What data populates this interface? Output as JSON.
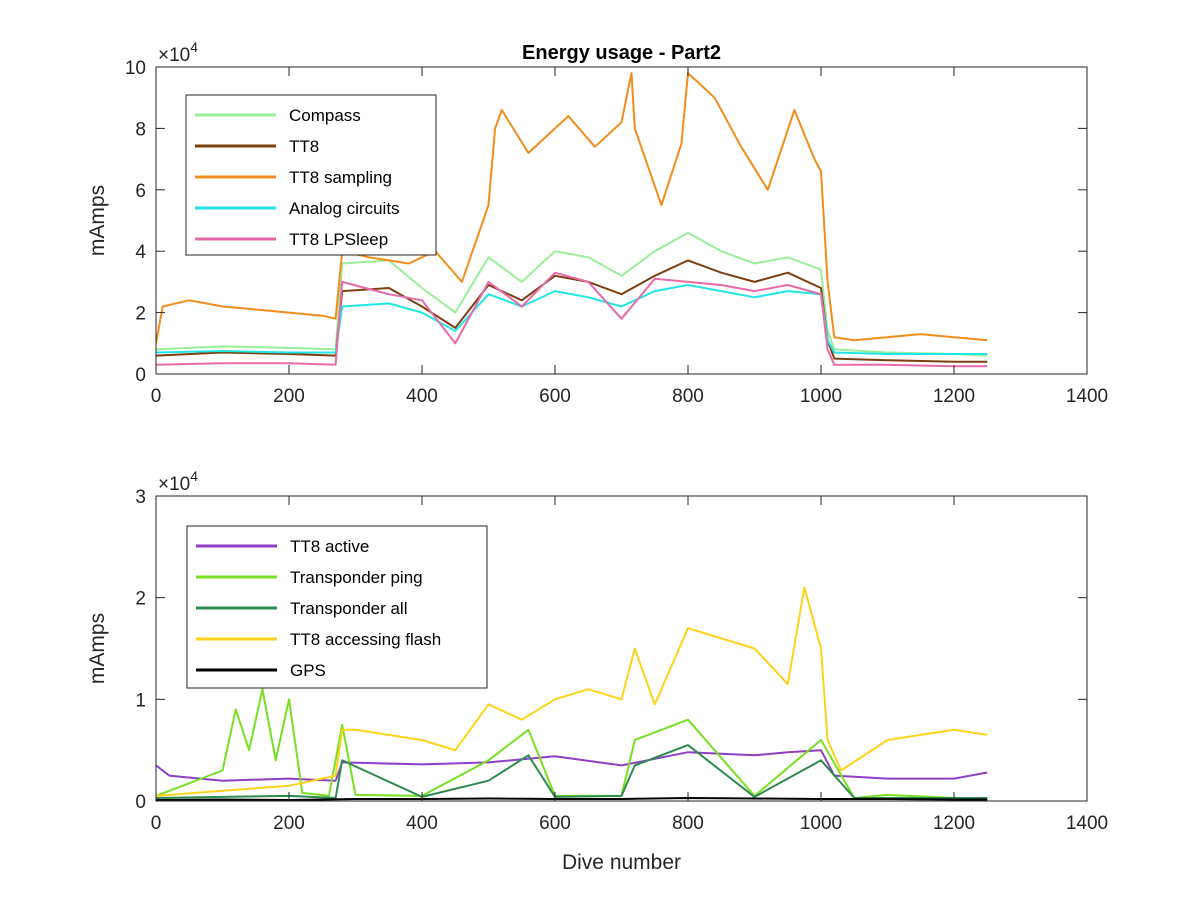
{
  "chart_data": [
    {
      "type": "line",
      "title": "Energy usage - Part2",
      "xlabel": "",
      "ylabel": "mAmps",
      "xlim": [
        0,
        1400
      ],
      "ylim": [
        0,
        100000
      ],
      "y_multiplier_label": "×10",
      "y_multiplier_exp": "4",
      "xticks": [
        "0",
        "200",
        "400",
        "600",
        "800",
        "1000",
        "1200",
        "1400"
      ],
      "yticks": [
        "0",
        "2",
        "4",
        "6",
        "8",
        "10"
      ],
      "legend": "top-left",
      "grid": false,
      "series": [
        {
          "name": "Compass",
          "color": "#99ee99",
          "x": [
            0,
            100,
            200,
            270,
            280,
            350,
            400,
            450,
            500,
            550,
            600,
            650,
            700,
            750,
            800,
            850,
            900,
            950,
            1000,
            1010,
            1020,
            1100,
            1200,
            1250
          ],
          "y": [
            8000,
            9000,
            8500,
            8000,
            36000,
            37000,
            28000,
            20000,
            38000,
            30000,
            40000,
            38000,
            32000,
            40000,
            46000,
            40000,
            36000,
            38000,
            34000,
            14000,
            8000,
            7000,
            6500,
            6000
          ]
        },
        {
          "name": "TT8",
          "color": "#7b3f10",
          "x": [
            0,
            100,
            200,
            270,
            280,
            350,
            400,
            450,
            500,
            550,
            600,
            650,
            700,
            750,
            800,
            850,
            900,
            950,
            1000,
            1010,
            1020,
            1100,
            1200,
            1250
          ],
          "y": [
            6000,
            7000,
            6500,
            6000,
            27000,
            28000,
            22000,
            15000,
            29000,
            24000,
            32000,
            30000,
            26000,
            32000,
            37000,
            33000,
            30000,
            33000,
            28000,
            11000,
            5000,
            4500,
            4000,
            4000
          ]
        },
        {
          "name": "TT8 sampling",
          "color": "#f28c1c",
          "x": [
            0,
            10,
            50,
            100,
            150,
            200,
            250,
            270,
            280,
            320,
            380,
            420,
            460,
            500,
            510,
            520,
            560,
            600,
            620,
            660,
            700,
            715,
            720,
            760,
            790,
            800,
            840,
            880,
            920,
            960,
            990,
            1000,
            1010,
            1020,
            1050,
            1100,
            1150,
            1200,
            1250
          ],
          "y": [
            10000,
            22000,
            24000,
            22000,
            21000,
            20000,
            19000,
            18000,
            40000,
            38000,
            36000,
            40000,
            30000,
            55000,
            80000,
            86000,
            72000,
            80000,
            84000,
            74000,
            82000,
            98000,
            80000,
            55000,
            75000,
            98000,
            90000,
            74000,
            60000,
            86000,
            70000,
            66000,
            30000,
            12000,
            11000,
            12000,
            13000,
            12000,
            11000
          ]
        },
        {
          "name": "Analog circuits",
          "color": "#22e5e5",
          "x": [
            0,
            100,
            200,
            270,
            280,
            350,
            400,
            450,
            500,
            550,
            600,
            650,
            700,
            750,
            800,
            850,
            900,
            950,
            1000,
            1010,
            1020,
            1100,
            1200,
            1250
          ],
          "y": [
            7000,
            7500,
            7000,
            7000,
            22000,
            23000,
            20000,
            14000,
            26000,
            22000,
            27000,
            25000,
            22000,
            27000,
            29000,
            27000,
            25000,
            27000,
            26000,
            11000,
            7000,
            6500,
            6500,
            6500
          ]
        },
        {
          "name": "TT8 LPSleep",
          "color": "#e86aa8",
          "x": [
            0,
            100,
            200,
            270,
            280,
            350,
            400,
            450,
            500,
            550,
            600,
            650,
            700,
            750,
            800,
            850,
            900,
            950,
            1000,
            1010,
            1020,
            1100,
            1200,
            1250
          ],
          "y": [
            3000,
            3500,
            3500,
            3000,
            30000,
            26000,
            24000,
            10000,
            30000,
            22000,
            33000,
            30000,
            18000,
            31000,
            30000,
            29000,
            27000,
            29000,
            26000,
            8000,
            3000,
            3000,
            2500,
            2500
          ]
        }
      ]
    },
    {
      "type": "line",
      "title": "",
      "xlabel": "Dive number",
      "ylabel": "mAmps",
      "xlim": [
        0,
        1400
      ],
      "ylim": [
        0,
        30000
      ],
      "y_multiplier_label": "×10",
      "y_multiplier_exp": "4",
      "xticks": [
        "0",
        "200",
        "400",
        "600",
        "800",
        "1000",
        "1200",
        "1400"
      ],
      "yticks": [
        "0",
        "1",
        "2",
        "3"
      ],
      "legend": "top-left",
      "grid": false,
      "series": [
        {
          "name": "TT8 active",
          "color": "#8e3fc4",
          "x": [
            0,
            20,
            100,
            200,
            270,
            280,
            400,
            500,
            600,
            700,
            800,
            900,
            950,
            1000,
            1020,
            1100,
            1200,
            1250
          ],
          "y": [
            3500,
            2500,
            2000,
            2200,
            2000,
            3800,
            3600,
            3800,
            4400,
            3500,
            4800,
            4500,
            4800,
            5000,
            2500,
            2200,
            2200,
            2800
          ]
        },
        {
          "name": "Transponder ping",
          "color": "#77e022",
          "x": [
            0,
            100,
            120,
            140,
            160,
            180,
            200,
            220,
            260,
            280,
            300,
            400,
            500,
            560,
            600,
            700,
            720,
            800,
            900,
            1000,
            1050,
            1100,
            1200,
            1250
          ],
          "y": [
            500,
            3000,
            9000,
            5000,
            11000,
            4000,
            10000,
            800,
            500,
            7500,
            600,
            500,
            4000,
            7000,
            500,
            500,
            6000,
            8000,
            500,
            6000,
            300,
            600,
            300,
            200
          ]
        },
        {
          "name": "Transponder all",
          "color": "#2e8b50",
          "x": [
            0,
            100,
            200,
            270,
            280,
            400,
            500,
            560,
            600,
            700,
            720,
            800,
            900,
            1000,
            1050,
            1100,
            1200,
            1250
          ],
          "y": [
            300,
            400,
            500,
            300,
            4000,
            400,
            2000,
            4500,
            400,
            500,
            3500,
            5500,
            400,
            4000,
            300,
            300,
            300,
            300
          ]
        },
        {
          "name": "TT8 accessing flash",
          "color": "#ffd21a",
          "x": [
            0,
            100,
            200,
            270,
            280,
            300,
            400,
            450,
            500,
            550,
            600,
            650,
            700,
            720,
            750,
            800,
            850,
            900,
            950,
            975,
            1000,
            1010,
            1030,
            1100,
            1200,
            1250
          ],
          "y": [
            500,
            1000,
            1500,
            2500,
            7000,
            7000,
            6000,
            5000,
            9500,
            8000,
            10000,
            11000,
            10000,
            15000,
            9500,
            17000,
            16000,
            15000,
            11500,
            21000,
            15000,
            6000,
            3000,
            6000,
            7000,
            6500
          ]
        },
        {
          "name": "GPS",
          "color": "#000000",
          "x": [
            0,
            100,
            200,
            300,
            400,
            500,
            600,
            700,
            800,
            900,
            1000,
            1100,
            1200,
            1250
          ],
          "y": [
            100,
            150,
            100,
            200,
            200,
            250,
            200,
            200,
            300,
            250,
            200,
            200,
            150,
            150
          ]
        }
      ]
    }
  ]
}
